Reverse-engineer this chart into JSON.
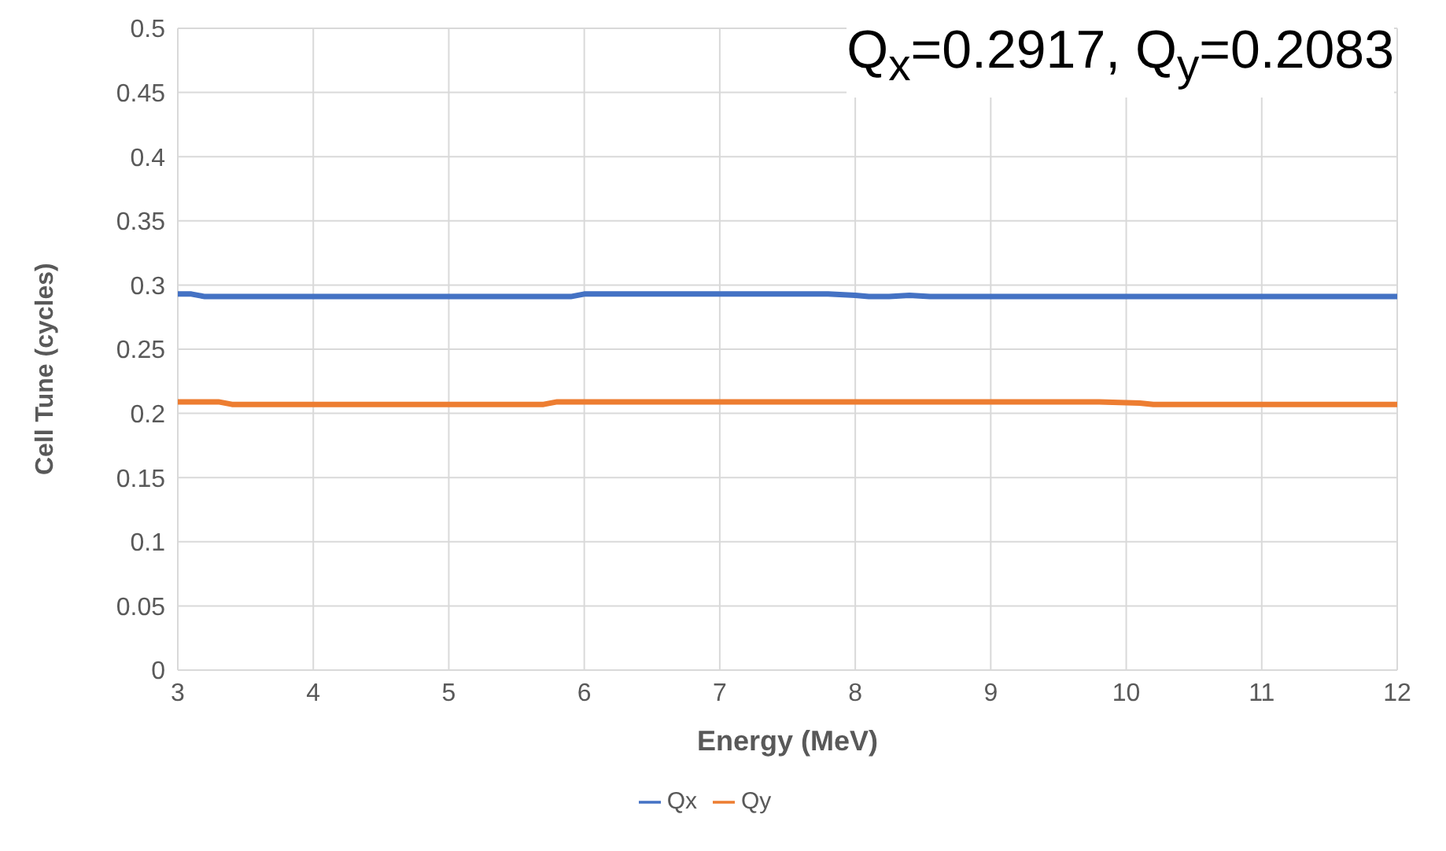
{
  "chart_data": {
    "type": "line",
    "xlabel": "Energy (MeV)",
    "ylabel": "Cell Tune (cycles)",
    "annotations": [
      "Q$_{x}$=0.2917, Q$_{y}$=0.2083"
    ],
    "xlim": [
      3,
      12
    ],
    "xticks": [
      3,
      4,
      5,
      6,
      7,
      8,
      9,
      10,
      11,
      12
    ],
    "ylim": [
      0,
      0.5
    ],
    "yticks": [
      0,
      0.05,
      0.1,
      0.15,
      0.2,
      0.25,
      0.3,
      0.35,
      0.4,
      0.45,
      0.5
    ],
    "grid": true,
    "legend": "bottom",
    "marker": "none",
    "line_style": "solid",
    "series": [
      {
        "name": "Qx",
        "color": "#4472c4",
        "x": [
          3,
          3.1,
          3.2,
          4,
          5,
          5.8,
          5.9,
          6,
          7,
          7.8,
          8,
          8.1,
          8.25,
          8.4,
          8.55,
          9,
          10,
          11,
          12
        ],
        "values": [
          0.293,
          0.293,
          0.291,
          0.291,
          0.291,
          0.291,
          0.291,
          0.293,
          0.293,
          0.293,
          0.292,
          0.291,
          0.291,
          0.292,
          0.291,
          0.291,
          0.291,
          0.291,
          0.291
        ]
      },
      {
        "name": "Qy",
        "color": "#ed7d31",
        "x": [
          3,
          3.3,
          3.4,
          4,
          5,
          5.7,
          5.8,
          6,
          7,
          8,
          9,
          9.8,
          10.1,
          10.2,
          11,
          12
        ],
        "values": [
          0.209,
          0.209,
          0.207,
          0.207,
          0.207,
          0.207,
          0.209,
          0.209,
          0.209,
          0.209,
          0.209,
          0.209,
          0.208,
          0.207,
          0.207,
          0.207
        ]
      }
    ]
  }
}
